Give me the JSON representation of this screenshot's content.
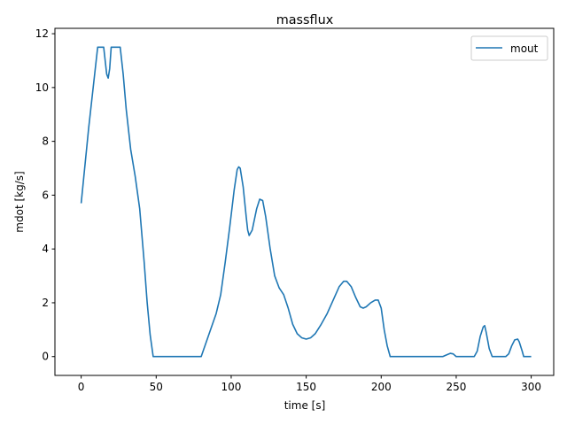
{
  "chart_data": {
    "type": "line",
    "title": "massflux",
    "xlabel": "time [s]",
    "ylabel": "mdot [kg/s]",
    "xlim": [
      -17.5,
      315
    ],
    "ylim": [
      -0.7,
      12.2
    ],
    "xticks": [
      0,
      50,
      100,
      150,
      200,
      250,
      300
    ],
    "yticks": [
      0,
      2,
      4,
      6,
      8,
      10,
      12
    ],
    "grid": false,
    "legend_position": "top-right",
    "series": [
      {
        "name": "mout",
        "color": "#1f77b4",
        "points": [
          [
            0,
            5.7
          ],
          [
            5,
            8.5
          ],
          [
            10,
            11.0
          ],
          [
            11,
            11.5
          ],
          [
            15,
            11.5
          ],
          [
            17,
            10.5
          ],
          [
            18,
            10.35
          ],
          [
            19,
            10.7
          ],
          [
            20,
            11.5
          ],
          [
            26,
            11.5
          ],
          [
            28,
            10.5
          ],
          [
            30,
            9.2
          ],
          [
            33,
            7.7
          ],
          [
            36,
            6.7
          ],
          [
            39,
            5.5
          ],
          [
            42,
            3.5
          ],
          [
            44,
            2.0
          ],
          [
            46,
            0.8
          ],
          [
            48,
            0.0
          ],
          [
            80,
            0.0
          ],
          [
            85,
            0.8
          ],
          [
            90,
            1.6
          ],
          [
            93,
            2.3
          ],
          [
            96,
            3.5
          ],
          [
            99,
            4.8
          ],
          [
            102,
            6.2
          ],
          [
            104,
            6.95
          ],
          [
            105,
            7.05
          ],
          [
            106,
            7.0
          ],
          [
            108,
            6.3
          ],
          [
            110,
            5.2
          ],
          [
            111,
            4.7
          ],
          [
            112,
            4.5
          ],
          [
            114,
            4.7
          ],
          [
            117,
            5.5
          ],
          [
            119,
            5.85
          ],
          [
            121,
            5.8
          ],
          [
            123,
            5.2
          ],
          [
            126,
            4.0
          ],
          [
            129,
            3.0
          ],
          [
            132,
            2.55
          ],
          [
            135,
            2.3
          ],
          [
            138,
            1.8
          ],
          [
            141,
            1.2
          ],
          [
            144,
            0.85
          ],
          [
            147,
            0.7
          ],
          [
            150,
            0.65
          ],
          [
            153,
            0.7
          ],
          [
            156,
            0.85
          ],
          [
            160,
            1.2
          ],
          [
            164,
            1.6
          ],
          [
            168,
            2.1
          ],
          [
            172,
            2.6
          ],
          [
            175,
            2.8
          ],
          [
            177,
            2.8
          ],
          [
            180,
            2.6
          ],
          [
            183,
            2.2
          ],
          [
            186,
            1.85
          ],
          [
            188,
            1.8
          ],
          [
            190,
            1.85
          ],
          [
            193,
            2.0
          ],
          [
            196,
            2.1
          ],
          [
            198,
            2.1
          ],
          [
            200,
            1.8
          ],
          [
            202,
            1.0
          ],
          [
            204,
            0.4
          ],
          [
            206,
            0.0
          ],
          [
            241,
            0.0
          ],
          [
            243,
            0.05
          ],
          [
            246,
            0.12
          ],
          [
            248,
            0.1
          ],
          [
            250,
            0.0
          ],
          [
            262,
            0.0
          ],
          [
            264,
            0.2
          ],
          [
            266,
            0.75
          ],
          [
            268,
            1.1
          ],
          [
            269,
            1.15
          ],
          [
            270,
            0.9
          ],
          [
            272,
            0.3
          ],
          [
            274,
            0.0
          ],
          [
            283,
            0.0
          ],
          [
            285,
            0.1
          ],
          [
            287,
            0.4
          ],
          [
            289,
            0.62
          ],
          [
            291,
            0.65
          ],
          [
            292,
            0.55
          ],
          [
            294,
            0.2
          ],
          [
            295,
            0.0
          ],
          [
            300,
            0.0
          ]
        ]
      }
    ]
  }
}
